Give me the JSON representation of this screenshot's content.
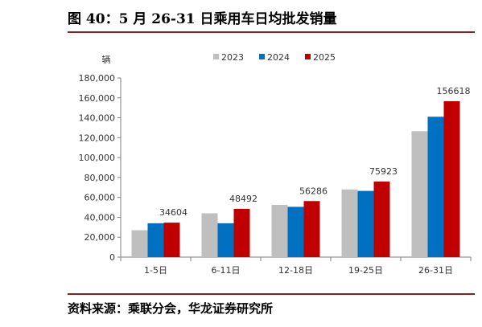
{
  "figure": {
    "title": "图 40：5 月 26-31 日乘用车日均批发销量",
    "source": "资料来源：乘联分会，华龙证券研究所"
  },
  "chart_data": {
    "type": "bar",
    "title": "",
    "ylabel": "辆",
    "xlabel": "",
    "ylim": [
      0,
      180000
    ],
    "yticks": [
      0,
      20000,
      40000,
      60000,
      80000,
      100000,
      120000,
      140000,
      160000,
      180000
    ],
    "ytick_labels": [
      "0",
      "20,000",
      "40,000",
      "60,000",
      "80,000",
      "100,000",
      "120,000",
      "140,000",
      "160,000",
      "180,000"
    ],
    "categories": [
      "1-5日",
      "6-11日",
      "12-18日",
      "19-25日",
      "26-31日"
    ],
    "series": [
      {
        "name": "2023",
        "color": "#bfbfbf",
        "values": [
          27000,
          44000,
          52500,
          68000,
          126500
        ]
      },
      {
        "name": "2024",
        "color": "#0070c0",
        "values": [
          34000,
          34000,
          50500,
          66500,
          141000
        ]
      },
      {
        "name": "2025",
        "color": "#c00000",
        "values": [
          34604,
          48492,
          56286,
          75923,
          156618
        ]
      }
    ],
    "data_labels": [
      {
        "series": "2025",
        "index": 0,
        "text": "34604"
      },
      {
        "series": "2025",
        "index": 1,
        "text": "48492"
      },
      {
        "series": "2025",
        "index": 2,
        "text": "56286"
      },
      {
        "series": "2025",
        "index": 3,
        "text": "75923"
      },
      {
        "series": "2025",
        "index": 4,
        "text": "156618"
      }
    ],
    "legend_position": "top",
    "grid": false
  }
}
